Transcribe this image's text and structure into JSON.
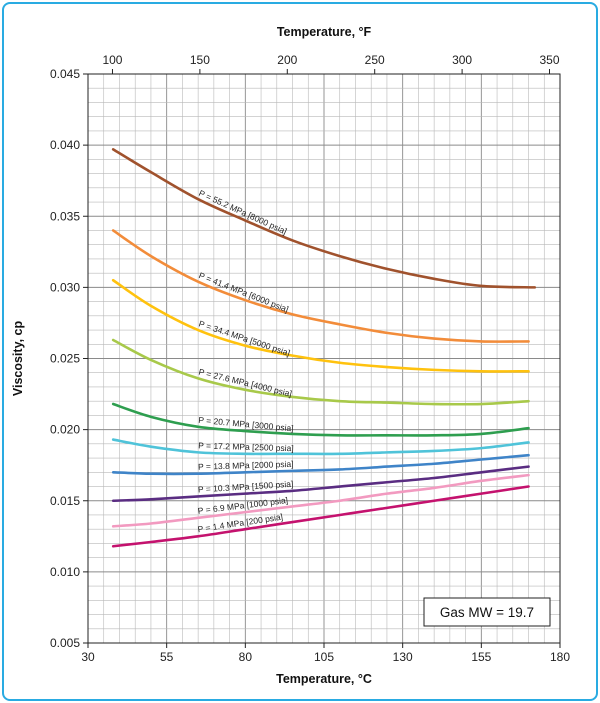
{
  "chart_data": {
    "type": "line",
    "title": "",
    "xlabel": "Temperature, °C",
    "ylabel": "Viscosity, cp",
    "x2label": "Temperature, °F",
    "xlim": [
      30,
      180
    ],
    "ylim": [
      0.005,
      0.045
    ],
    "x2lim": [
      86,
      356
    ],
    "xticks": [
      "30",
      "55",
      "80",
      "105",
      "130",
      "155",
      "180"
    ],
    "yticks": [
      "0.005",
      "0.010",
      "0.015",
      "0.020",
      "0.025",
      "0.030",
      "0.035",
      "0.040",
      "0.045"
    ],
    "x2ticks": [
      "100",
      "150",
      "200",
      "250",
      "300",
      "350"
    ],
    "grid": true,
    "annotation": "Gas MW = 19.7",
    "series": [
      {
        "name": "P = 55.2 MPa [8000 psia]",
        "color": "#a0522d",
        "x": [
          38,
          50,
          65,
          80,
          95,
          110,
          125,
          140,
          155,
          172
        ],
        "y": [
          0.0397,
          0.0381,
          0.0362,
          0.0347,
          0.0333,
          0.0322,
          0.0313,
          0.0306,
          0.0301,
          0.03
        ]
      },
      {
        "name": "P = 41.4 MPa [6000 psia]",
        "color": "#f28c3a",
        "x": [
          38,
          50,
          65,
          80,
          95,
          110,
          125,
          140,
          155,
          170
        ],
        "y": [
          0.034,
          0.0322,
          0.0304,
          0.0291,
          0.0281,
          0.0274,
          0.0268,
          0.0264,
          0.0262,
          0.0262
        ]
      },
      {
        "name": "P = 34.4 MPa [5000 psia]",
        "color": "#ffc20e",
        "x": [
          38,
          50,
          65,
          80,
          95,
          110,
          125,
          140,
          155,
          170
        ],
        "y": [
          0.0305,
          0.0287,
          0.027,
          0.0259,
          0.0252,
          0.0247,
          0.0244,
          0.0242,
          0.0241,
          0.0241
        ]
      },
      {
        "name": "P = 27.6 MPa [4000 psia]",
        "color": "#a8c94a",
        "x": [
          38,
          50,
          65,
          80,
          95,
          110,
          125,
          140,
          155,
          170
        ],
        "y": [
          0.0263,
          0.0249,
          0.0236,
          0.0228,
          0.0223,
          0.022,
          0.0219,
          0.0218,
          0.0218,
          0.022
        ]
      },
      {
        "name": "P = 20.7 MPa [3000 psia]",
        "color": "#2e9e4f",
        "x": [
          38,
          50,
          65,
          80,
          95,
          110,
          125,
          140,
          155,
          170
        ],
        "y": [
          0.0218,
          0.0209,
          0.0202,
          0.0199,
          0.0197,
          0.0196,
          0.0196,
          0.0196,
          0.0197,
          0.0201
        ]
      },
      {
        "name": "P = 17.2 MPa [2500 psia]",
        "color": "#4fc3d9",
        "x": [
          38,
          50,
          65,
          80,
          95,
          110,
          125,
          140,
          155,
          170
        ],
        "y": [
          0.0193,
          0.0188,
          0.0184,
          0.0183,
          0.0183,
          0.0183,
          0.0184,
          0.0185,
          0.0187,
          0.0191
        ]
      },
      {
        "name": "P = 13.8 MPa [2000 psia]",
        "color": "#3f84c8",
        "x": [
          38,
          50,
          65,
          80,
          95,
          110,
          125,
          140,
          155,
          170
        ],
        "y": [
          0.017,
          0.0169,
          0.0169,
          0.017,
          0.0171,
          0.0172,
          0.0174,
          0.0176,
          0.0179,
          0.0182
        ]
      },
      {
        "name": "P = 10.3 MPa [1500 psia]",
        "color": "#5a2d82",
        "x": [
          38,
          50,
          65,
          80,
          95,
          110,
          125,
          140,
          155,
          170
        ],
        "y": [
          0.015,
          0.0151,
          0.0153,
          0.0155,
          0.0157,
          0.016,
          0.0163,
          0.0166,
          0.017,
          0.0174
        ]
      },
      {
        "name": "P = 6.9 MPa [1000 psia]",
        "color": "#f29ac0",
        "x": [
          38,
          50,
          65,
          80,
          95,
          110,
          125,
          140,
          155,
          170
        ],
        "y": [
          0.0132,
          0.0134,
          0.0138,
          0.0142,
          0.0146,
          0.015,
          0.0155,
          0.0159,
          0.0164,
          0.0168
        ]
      },
      {
        "name": "P = 1.4 MPa [200 psia]",
        "color": "#c4126e",
        "x": [
          38,
          50,
          65,
          80,
          95,
          110,
          125,
          140,
          155,
          170
        ],
        "y": [
          0.0118,
          0.0121,
          0.0125,
          0.013,
          0.0135,
          0.014,
          0.0145,
          0.015,
          0.0155,
          0.016
        ]
      }
    ]
  }
}
